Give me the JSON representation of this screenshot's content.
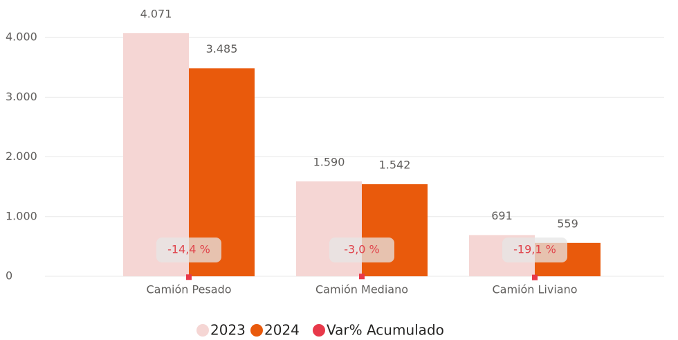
{
  "chart_data": {
    "type": "bar",
    "categories": [
      "Camión Pesado",
      "Camión Mediano",
      "Camión Liviano"
    ],
    "series": [
      {
        "name": "2023",
        "color": "#f5d6d4",
        "values": [
          4071,
          1590,
          691
        ],
        "value_labels": [
          "4.071",
          "1.590",
          "691"
        ]
      },
      {
        "name": "2024",
        "color": "#e95a0c",
        "values": [
          3485,
          1542,
          559
        ],
        "value_labels": [
          "3.485",
          "1.542",
          "559"
        ]
      },
      {
        "name": "Var% Acumulado",
        "color": "#e8394a",
        "values": [
          -14.4,
          -3.0,
          -19.1
        ],
        "value_labels": [
          "-14,4 %",
          "-3,0 %",
          "-19,1 %"
        ]
      }
    ],
    "ylim": [
      0,
      4500
    ],
    "yticks": [
      0,
      {
        "value": 1000,
        "label": "1.000"
      },
      {
        "value": 2000,
        "label": "2.000"
      },
      {
        "value": 3000,
        "label": "3.000"
      },
      {
        "value": 4000,
        "label": "4.000"
      }
    ],
    "grid": true,
    "legend": "bottom"
  }
}
